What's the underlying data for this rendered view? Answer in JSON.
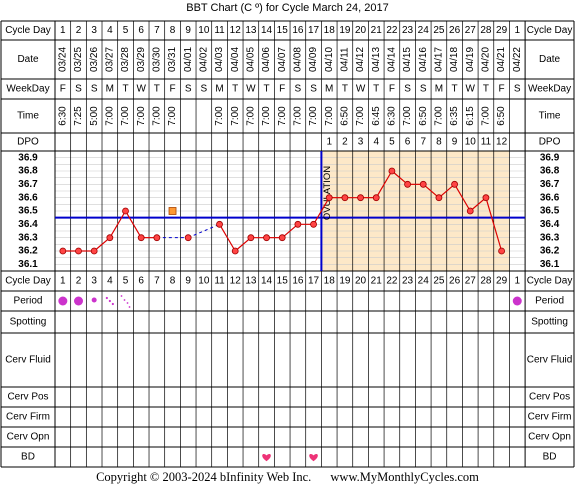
{
  "title": "BBT Chart (C º) for Cycle March 24, 2017",
  "footer": {
    "copyright": "Copyright © 2003-2024 bInfinity Web Inc.",
    "site": "www.MyMonthlyCycles.com"
  },
  "row_labels": {
    "cycle_day": "Cycle Day",
    "date": "Date",
    "weekday": "WeekDay",
    "time": "Time",
    "dpo": "DPO",
    "period": "Period",
    "spotting": "Spotting",
    "cerv_fluid": "Cerv Fluid",
    "cerv_pos": "Cerv Pos",
    "cerv_firm": "Cerv Firm",
    "cerv_opn": "Cerv Opn",
    "bd": "BD"
  },
  "days": [
    "1",
    "2",
    "3",
    "4",
    "5",
    "6",
    "7",
    "8",
    "9",
    "10",
    "11",
    "12",
    "13",
    "14",
    "15",
    "16",
    "17",
    "18",
    "19",
    "20",
    "21",
    "22",
    "23",
    "24",
    "25",
    "26",
    "27",
    "28",
    "29",
    "1"
  ],
  "dates": [
    "03/24",
    "03/25",
    "03/26",
    "03/27",
    "03/28",
    "03/29",
    "03/30",
    "03/31",
    "04/01",
    "04/02",
    "04/03",
    "04/04",
    "04/05",
    "04/06",
    "04/07",
    "04/08",
    "04/09",
    "04/10",
    "04/11",
    "04/12",
    "04/13",
    "04/14",
    "04/15",
    "04/16",
    "04/17",
    "04/18",
    "04/19",
    "04/20",
    "04/21",
    "04/22"
  ],
  "weekdays": [
    "F",
    "S",
    "S",
    "M",
    "T",
    "W",
    "T",
    "F",
    "S",
    "S",
    "M",
    "T",
    "W",
    "T",
    "F",
    "S",
    "S",
    "M",
    "T",
    "W",
    "T",
    "F",
    "S",
    "S",
    "M",
    "T",
    "W",
    "T",
    "F",
    "S"
  ],
  "times": [
    "6:30",
    "7:25",
    "5:00",
    "7:00",
    "7:00",
    "7:00",
    "7:00",
    "7:00",
    "",
    "",
    "7:00",
    "7:00",
    "7:00",
    "7:00",
    "7:00",
    "7:00",
    "7:00",
    "7:00",
    "6:50",
    "7:00",
    "6:45",
    "6:30",
    "7:00",
    "6:50",
    "7:00",
    "6:35",
    "6:15",
    "7:00",
    "6:50",
    ""
  ],
  "dpo": [
    "",
    "",
    "",
    "",
    "",
    "",
    "",
    "",
    "",
    "",
    "",
    "",
    "",
    "",
    "",
    "",
    "",
    "1",
    "2",
    "3",
    "4",
    "5",
    "6",
    "7",
    "8",
    "9",
    "10",
    "11",
    "12",
    ""
  ],
  "ovulation_label": "OVULATION",
  "period_marks": [
    "heavy",
    "heavy",
    "medium",
    "light",
    "spotting",
    "",
    "",
    "",
    "",
    "",
    "",
    "",
    "",
    "",
    "",
    "",
    "",
    "",
    "",
    "",
    "",
    "",
    "",
    "",
    "",
    "",
    "",
    "",
    "",
    "heavy"
  ],
  "bd_marks": [
    "",
    "",
    "",
    "",
    "",
    "",
    "",
    "",
    "",
    "",
    "",
    "",
    "",
    "1",
    "",
    "",
    "1",
    "",
    "",
    "",
    "",
    "",
    "",
    "",
    "",
    "",
    "",
    "",
    "",
    ""
  ],
  "colors": {
    "line": "#dd0000",
    "point_fill": "#ff4444",
    "coverline": "#0000cc",
    "luteal_shade": "#fde8c8",
    "period_dot": "#cc33cc",
    "heart": "#ee3377",
    "grid": "#000000",
    "temp_grid": "#cccccc"
  },
  "chart_data": {
    "type": "line",
    "title": "BBT Chart (C º) for Cycle March 24, 2017",
    "x": [
      "1",
      "2",
      "3",
      "4",
      "5",
      "6",
      "7",
      "8",
      "9",
      "10",
      "11",
      "12",
      "13",
      "14",
      "15",
      "16",
      "17",
      "18",
      "19",
      "20",
      "21",
      "22",
      "23",
      "24",
      "25",
      "26",
      "27",
      "28",
      "29",
      "1"
    ],
    "ylim": [
      36.05,
      36.95
    ],
    "yticks": [
      "36.9",
      "36.8",
      "36.7",
      "36.6",
      "36.5",
      "36.4",
      "36.3",
      "36.2",
      "36.1"
    ],
    "temperatures": [
      36.2,
      36.2,
      36.2,
      36.3,
      36.5,
      36.3,
      36.3,
      null,
      36.3,
      null,
      36.4,
      36.2,
      36.3,
      36.3,
      36.3,
      36.4,
      36.4,
      36.6,
      36.6,
      36.6,
      36.6,
      36.8,
      36.7,
      36.7,
      36.6,
      36.7,
      36.5,
      36.6,
      36.2,
      null
    ],
    "discarded": [
      {
        "day_index": 7,
        "temp": 36.5
      }
    ],
    "coverline": 36.45,
    "ovulation_day_index": 16,
    "gridlines": true
  }
}
